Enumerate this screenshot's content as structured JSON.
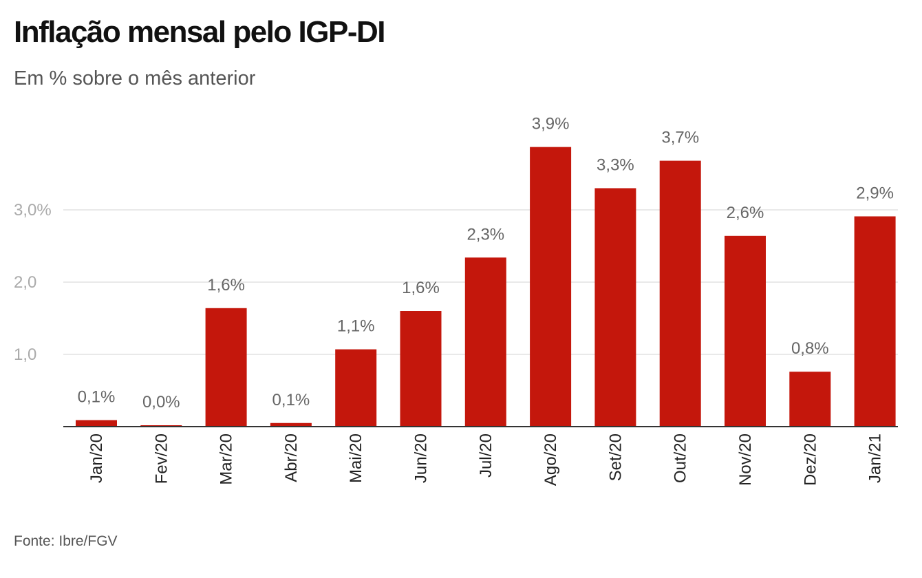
{
  "chart_data": {
    "type": "bar",
    "title": "Inflação mensal pelo IGP-DI",
    "subtitle": "Em % sobre o mês anterior",
    "source": "Fonte: Ibre/FGV",
    "categories": [
      "Jan/20",
      "Fev/20",
      "Mar/20",
      "Abr/20",
      "Mai/20",
      "Jun/20",
      "Jul/20",
      "Ago/20",
      "Set/20",
      "Out/20",
      "Nov/20",
      "Dez/20",
      "Jan/21"
    ],
    "values": [
      0.09,
      0.01,
      1.64,
      0.05,
      1.07,
      1.6,
      2.34,
      3.87,
      3.3,
      3.68,
      2.64,
      0.76,
      2.91
    ],
    "data_labels": [
      "0,1%",
      "0,0%",
      "1,6%",
      "0,1%",
      "1,1%",
      "1,6%",
      "2,3%",
      "3,9%",
      "3,3%",
      "3,7%",
      "2,6%",
      "0,8%",
      "2,9%"
    ],
    "y_ticks": [
      1,
      2,
      3
    ],
    "y_tick_labels": [
      "1,0",
      "2,0",
      "3,0%"
    ],
    "ylim": [
      0,
      4.2
    ],
    "grid": true,
    "bar_color": "#c4170c",
    "grid_color": "#e2e2e2",
    "axis_color": "#333333"
  }
}
